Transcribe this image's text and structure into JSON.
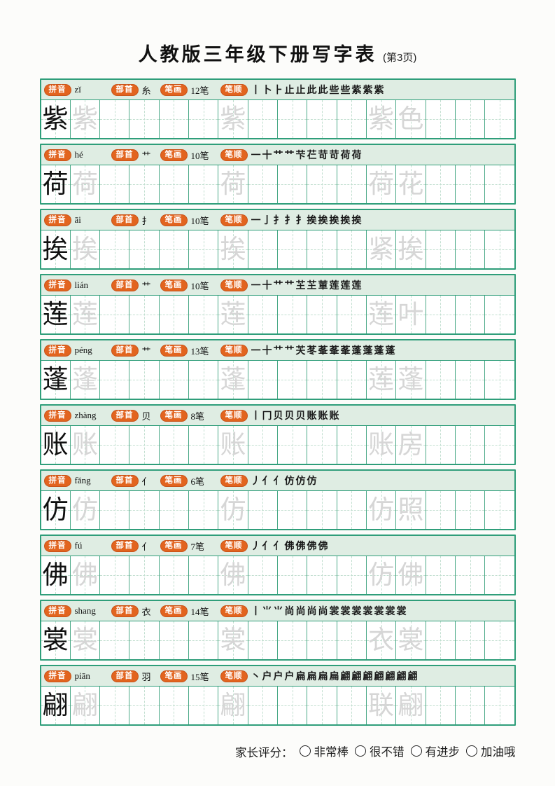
{
  "page": {
    "title": "人教版三年级下册写字表",
    "page_note": "(第3页)"
  },
  "labels": {
    "pinyin": "拼音",
    "radical": "部首",
    "strokes": "笔画",
    "stroke_order": "笔顺"
  },
  "colors": {
    "accent_orange": "#e2641f",
    "border_green": "#2f9e7a",
    "header_bg": "#dfede3",
    "guide_dash": "#c2dfd0",
    "trace_gray": "#d6d6d6"
  },
  "grid": {
    "cells_per_row": 16,
    "trace_cell_indexes": [
      1,
      6
    ],
    "word_cell_indexes": [
      11,
      12
    ]
  },
  "rows": [
    {
      "char": "紫",
      "pinyin": "zǐ",
      "radical": "糸",
      "stroke_count": "12笔",
      "stroke_order": "丨卜⺊止止此此些些紫紫紫",
      "word": [
        "紫",
        "色"
      ]
    },
    {
      "char": "荷",
      "pinyin": "hé",
      "radical": "艹",
      "stroke_count": "10笔",
      "stroke_order": "一十艹艹芐芢苛苛荷荷",
      "word": [
        "荷",
        "花"
      ]
    },
    {
      "char": "挨",
      "pinyin": "āi",
      "radical": "扌",
      "stroke_count": "10笔",
      "stroke_order": "一亅扌扌扌挨挨挨挨挨",
      "word": [
        "紧",
        "挨"
      ]
    },
    {
      "char": "莲",
      "pinyin": "lián",
      "radical": "艹",
      "stroke_count": "10笔",
      "stroke_order": "一十艹艹芏芏莗莲莲莲",
      "word": [
        "莲",
        "叶"
      ]
    },
    {
      "char": "蓬",
      "pinyin": "péng",
      "radical": "艹",
      "stroke_count": "13笔",
      "stroke_order": "一十艹艹芖苳莑莑莑蓬蓬蓬蓬",
      "word": [
        "莲",
        "蓬"
      ]
    },
    {
      "char": "账",
      "pinyin": "zhàng",
      "radical": "贝",
      "stroke_count": "8笔",
      "stroke_order": "丨冂贝贝贝账账账",
      "word": [
        "账",
        "房"
      ]
    },
    {
      "char": "仿",
      "pinyin": "fǎng",
      "radical": "亻",
      "stroke_count": "6笔",
      "stroke_order": "丿亻亻仿仿仿",
      "word": [
        "仿",
        "照"
      ]
    },
    {
      "char": "佛",
      "pinyin": "fú",
      "radical": "亻",
      "stroke_count": "7笔",
      "stroke_order": "丿亻亻佛佛佛佛",
      "word": [
        "仿",
        "佛"
      ]
    },
    {
      "char": "裳",
      "pinyin": "shang",
      "radical": "衣",
      "stroke_count": "14笔",
      "stroke_order": "丨⺌⺌尚尚尚尚裳裳裳裳裳裳裳",
      "word": [
        "衣",
        "裳"
      ]
    },
    {
      "char": "翩",
      "pinyin": "piān",
      "radical": "羽",
      "stroke_count": "15笔",
      "stroke_order": "丶户户户扁扁扁扁翩翩翩翩翩翩翩",
      "word": [
        "联",
        "翩"
      ]
    }
  ],
  "rating": {
    "label": "家长评分：",
    "options": [
      "非常棒",
      "很不错",
      "有进步",
      "加油哦"
    ]
  }
}
